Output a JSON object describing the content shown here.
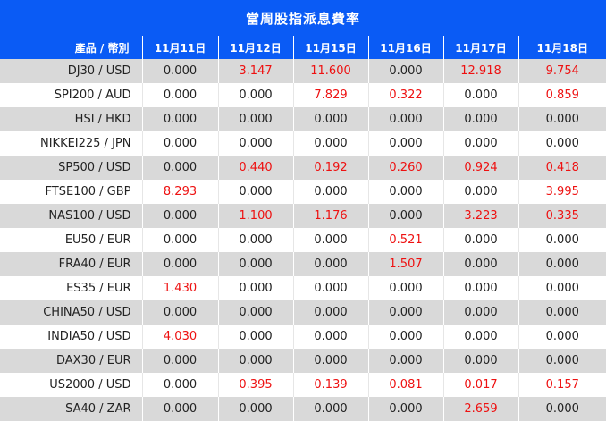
{
  "title": "當周股指派息費率",
  "headers": [
    "產品 / 幣別",
    "11月11日",
    "11月12日",
    "11月15日",
    "11月16日",
    "11月17日",
    "11月18日"
  ],
  "rows": [
    {
      "product": "DJ30 / USD",
      "values": [
        "0.000",
        "3.147",
        "11.600",
        "0.000",
        "12.918",
        "9.754"
      ]
    },
    {
      "product": "SPI200 / AUD",
      "values": [
        "0.000",
        "0.000",
        "7.829",
        "0.322",
        "0.000",
        "0.859"
      ]
    },
    {
      "product": "HSI / HKD",
      "values": [
        "0.000",
        "0.000",
        "0.000",
        "0.000",
        "0.000",
        "0.000"
      ]
    },
    {
      "product": "NIKKEI225 / JPN",
      "values": [
        "0.000",
        "0.000",
        "0.000",
        "0.000",
        "0.000",
        "0.000"
      ]
    },
    {
      "product": "SP500 / USD",
      "values": [
        "0.000",
        "0.440",
        "0.192",
        "0.260",
        "0.924",
        "0.418"
      ]
    },
    {
      "product": "FTSE100 / GBP",
      "values": [
        "8.293",
        "0.000",
        "0.000",
        "0.000",
        "0.000",
        "3.995"
      ]
    },
    {
      "product": "NAS100 / USD",
      "values": [
        "0.000",
        "1.100",
        "1.176",
        "0.000",
        "3.223",
        "0.335"
      ]
    },
    {
      "product": "EU50 / EUR",
      "values": [
        "0.000",
        "0.000",
        "0.000",
        "0.521",
        "0.000",
        "0.000"
      ]
    },
    {
      "product": "FRA40 / EUR",
      "values": [
        "0.000",
        "0.000",
        "0.000",
        "1.507",
        "0.000",
        "0.000"
      ]
    },
    {
      "product": "ES35 / EUR",
      "values": [
        "1.430",
        "0.000",
        "0.000",
        "0.000",
        "0.000",
        "0.000"
      ]
    },
    {
      "product": "CHINA50 / USD",
      "values": [
        "0.000",
        "0.000",
        "0.000",
        "0.000",
        "0.000",
        "0.000"
      ]
    },
    {
      "product": "INDIA50 / USD",
      "values": [
        "4.030",
        "0.000",
        "0.000",
        "0.000",
        "0.000",
        "0.000"
      ]
    },
    {
      "product": "DAX30 / EUR",
      "values": [
        "0.000",
        "0.000",
        "0.000",
        "0.000",
        "0.000",
        "0.000"
      ]
    },
    {
      "product": "US2000 / USD",
      "values": [
        "0.000",
        "0.395",
        "0.139",
        "0.081",
        "0.017",
        "0.157"
      ]
    },
    {
      "product": "SA40 / ZAR",
      "values": [
        "0.000",
        "0.000",
        "0.000",
        "0.000",
        "2.659",
        "0.000"
      ]
    }
  ],
  "colors": {
    "header_bg": "#0a5bf5",
    "positive_value": "#ee1111",
    "stripe": "#d9d9d9"
  }
}
